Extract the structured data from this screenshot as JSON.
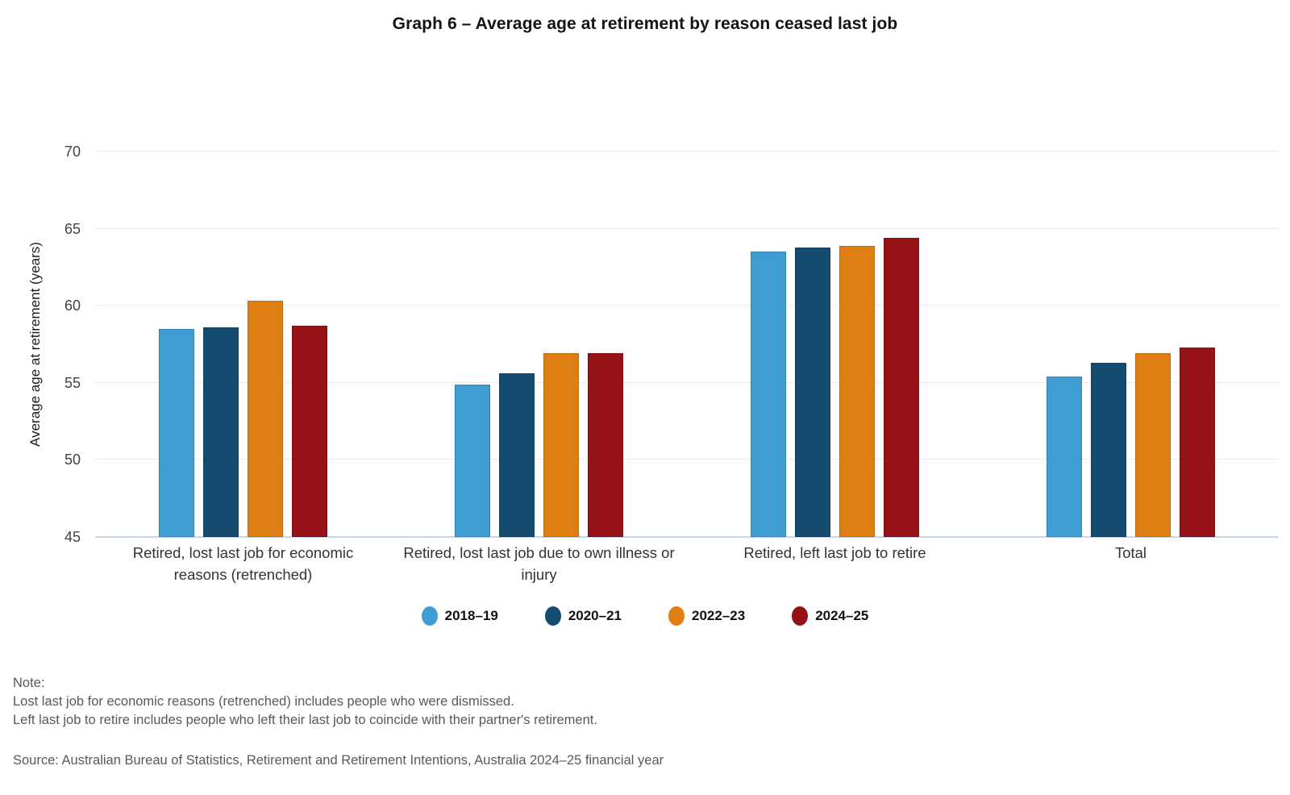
{
  "title": "Graph 6 – Average age at retirement by reason ceased last job",
  "chart_data": {
    "type": "bar",
    "title": "Graph 6 – Average age at retirement by reason ceased last job",
    "xlabel": "",
    "ylabel": "Average age at retirement (years)",
    "ylim": [
      45,
      70
    ],
    "yticks": [
      45,
      50,
      55,
      60,
      65,
      70
    ],
    "grid": true,
    "legend_position": "bottom",
    "categories": [
      "Retired, lost last job for economic reasons (retrenched)",
      "Retired, lost last job due to own illness or injury",
      "Retired, left last job to retire",
      "Total"
    ],
    "series": [
      {
        "name": "2018–19",
        "color": "#3F9DD3",
        "values": [
          58.5,
          54.9,
          63.5,
          55.4
        ]
      },
      {
        "name": "2020–21",
        "color": "#164B70",
        "values": [
          58.6,
          55.6,
          63.8,
          56.3
        ]
      },
      {
        "name": "2022–23",
        "color": "#DF7F13",
        "values": [
          60.3,
          56.9,
          63.9,
          56.9
        ]
      },
      {
        "name": "2024–25",
        "color": "#951317",
        "values": [
          58.7,
          56.9,
          64.4,
          57.3
        ]
      }
    ]
  },
  "axis_style": {
    "grid_color": "#eaeaea",
    "baseline_color": "#c7d6ea"
  },
  "notes": {
    "heading": "Note:",
    "lines": [
      "Lost last job for economic reasons (retrenched) includes people who were dismissed.",
      "Left last job to retire includes people who left their last job to coincide with their partner's retirement."
    ]
  },
  "source": "Source: Australian Bureau of Statistics, Retirement and Retirement Intentions, Australia 2024–25 financial year"
}
